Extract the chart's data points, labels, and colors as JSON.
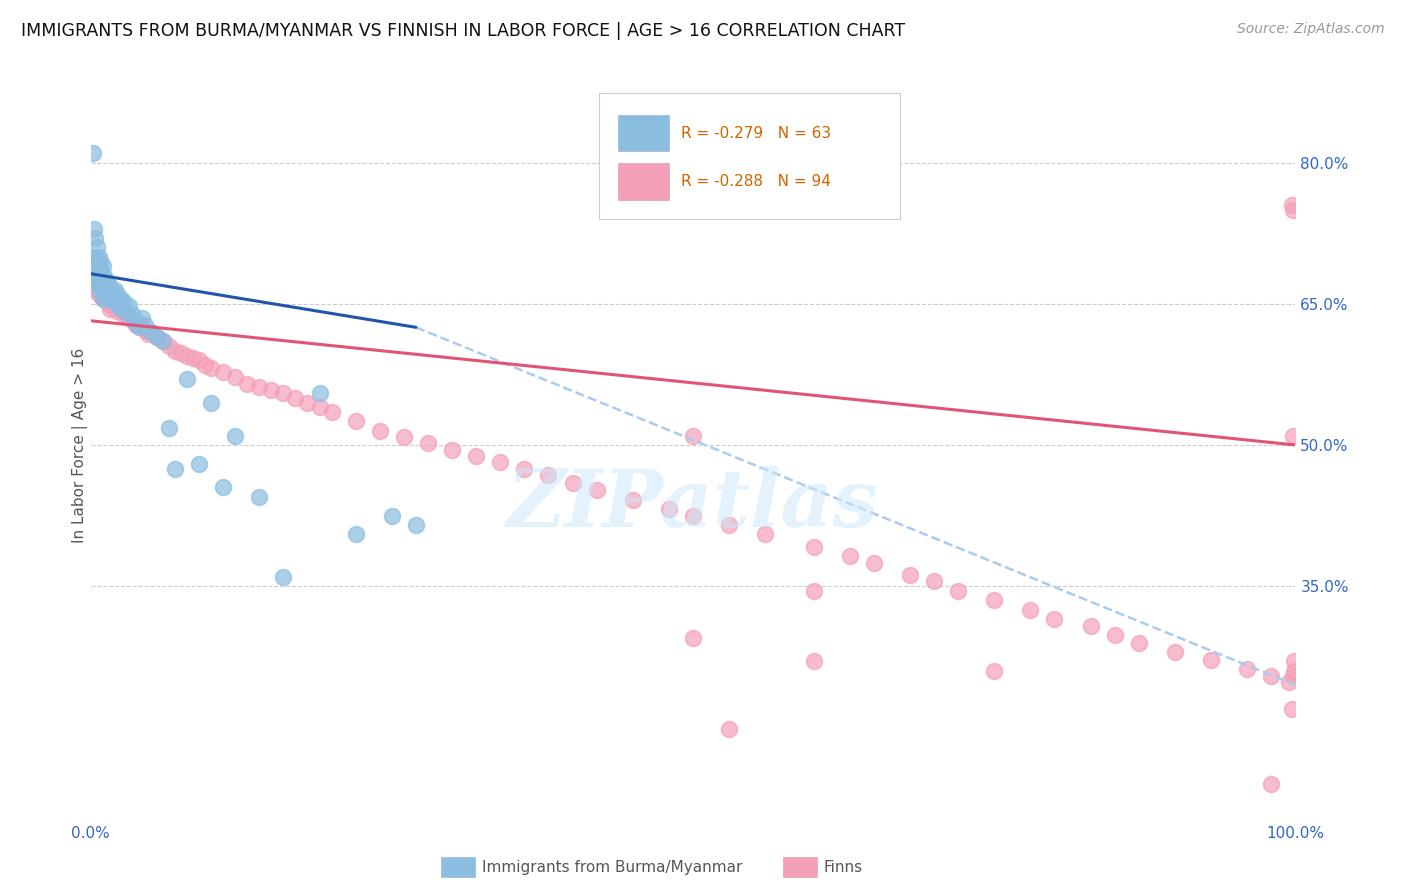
{
  "title": "IMMIGRANTS FROM BURMA/MYANMAR VS FINNISH IN LABOR FORCE | AGE > 16 CORRELATION CHART",
  "source": "Source: ZipAtlas.com",
  "ylabel": "In Labor Force | Age > 16",
  "blue_color": "#8bbde0",
  "pink_color": "#f4a0b8",
  "blue_line_color": "#2255aa",
  "pink_line_color": "#e05575",
  "blue_dashed_color": "#aaccee",
  "watermark": "ZIPatlas",
  "legend_blue_r": "R = -0.279",
  "legend_blue_n": "N = 63",
  "legend_pink_r": "R = -0.288",
  "legend_pink_n": "N = 94",
  "blue_x": [
    0.002,
    0.003,
    0.004,
    0.004,
    0.005,
    0.005,
    0.005,
    0.006,
    0.006,
    0.007,
    0.007,
    0.007,
    0.008,
    0.008,
    0.008,
    0.009,
    0.009,
    0.01,
    0.01,
    0.01,
    0.01,
    0.011,
    0.011,
    0.012,
    0.012,
    0.013,
    0.013,
    0.014,
    0.015,
    0.015,
    0.016,
    0.017,
    0.018,
    0.02,
    0.021,
    0.022,
    0.023,
    0.025,
    0.026,
    0.028,
    0.03,
    0.032,
    0.035,
    0.038,
    0.04,
    0.043,
    0.045,
    0.05,
    0.055,
    0.06,
    0.065,
    0.07,
    0.08,
    0.09,
    0.1,
    0.11,
    0.12,
    0.14,
    0.16,
    0.19,
    0.22,
    0.25,
    0.27
  ],
  "blue_y": [
    0.81,
    0.73,
    0.72,
    0.7,
    0.71,
    0.695,
    0.68,
    0.695,
    0.675,
    0.7,
    0.685,
    0.67,
    0.695,
    0.68,
    0.665,
    0.685,
    0.67,
    0.69,
    0.675,
    0.665,
    0.655,
    0.68,
    0.668,
    0.675,
    0.66,
    0.672,
    0.658,
    0.665,
    0.67,
    0.655,
    0.668,
    0.66,
    0.655,
    0.665,
    0.652,
    0.66,
    0.648,
    0.655,
    0.645,
    0.652,
    0.64,
    0.648,
    0.638,
    0.63,
    0.625,
    0.635,
    0.628,
    0.62,
    0.615,
    0.61,
    0.518,
    0.475,
    0.57,
    0.48,
    0.545,
    0.455,
    0.51,
    0.445,
    0.36,
    0.555,
    0.405,
    0.425,
    0.415
  ],
  "pink_x": [
    0.003,
    0.004,
    0.005,
    0.006,
    0.007,
    0.008,
    0.009,
    0.01,
    0.011,
    0.012,
    0.013,
    0.015,
    0.016,
    0.018,
    0.02,
    0.022,
    0.025,
    0.028,
    0.03,
    0.032,
    0.035,
    0.038,
    0.04,
    0.042,
    0.045,
    0.048,
    0.05,
    0.055,
    0.06,
    0.065,
    0.07,
    0.075,
    0.08,
    0.085,
    0.09,
    0.095,
    0.1,
    0.11,
    0.12,
    0.13,
    0.14,
    0.15,
    0.16,
    0.17,
    0.18,
    0.19,
    0.2,
    0.22,
    0.24,
    0.26,
    0.28,
    0.3,
    0.32,
    0.34,
    0.36,
    0.38,
    0.4,
    0.42,
    0.45,
    0.48,
    0.5,
    0.53,
    0.56,
    0.6,
    0.63,
    0.65,
    0.68,
    0.7,
    0.72,
    0.75,
    0.78,
    0.8,
    0.83,
    0.85,
    0.87,
    0.9,
    0.93,
    0.96,
    0.98,
    0.995,
    0.997,
    0.998,
    0.999,
    0.5,
    0.53,
    0.6,
    0.75,
    0.98,
    0.997,
    0.998,
    0.998,
    0.999,
    0.5,
    0.6
  ],
  "pink_y": [
    0.68,
    0.665,
    0.672,
    0.668,
    0.66,
    0.665,
    0.658,
    0.662,
    0.655,
    0.66,
    0.655,
    0.65,
    0.645,
    0.648,
    0.65,
    0.642,
    0.645,
    0.638,
    0.64,
    0.635,
    0.632,
    0.628,
    0.63,
    0.625,
    0.622,
    0.618,
    0.62,
    0.615,
    0.61,
    0.605,
    0.6,
    0.598,
    0.595,
    0.592,
    0.59,
    0.585,
    0.582,
    0.578,
    0.572,
    0.565,
    0.562,
    0.558,
    0.555,
    0.55,
    0.545,
    0.54,
    0.535,
    0.525,
    0.515,
    0.508,
    0.502,
    0.495,
    0.488,
    0.482,
    0.475,
    0.468,
    0.46,
    0.452,
    0.442,
    0.432,
    0.425,
    0.415,
    0.405,
    0.392,
    0.382,
    0.375,
    0.362,
    0.355,
    0.345,
    0.335,
    0.325,
    0.315,
    0.308,
    0.298,
    0.29,
    0.28,
    0.272,
    0.262,
    0.255,
    0.248,
    0.755,
    0.255,
    0.26,
    0.51,
    0.198,
    0.27,
    0.26,
    0.14,
    0.22,
    0.51,
    0.75,
    0.27,
    0.295,
    0.345
  ]
}
